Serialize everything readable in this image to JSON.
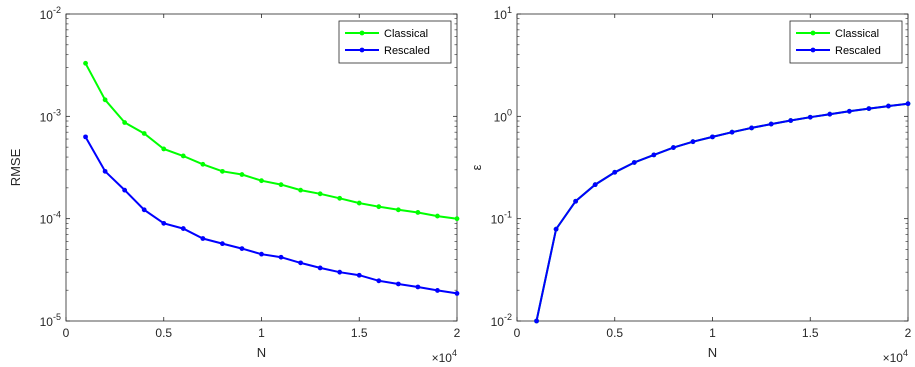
{
  "colors": {
    "classical": "#00ff00",
    "rescaled": "#0000ff",
    "axis": "#262626"
  },
  "chart_data": [
    {
      "type": "line",
      "title": "",
      "xlabel": "N",
      "ylabel": "RMSE",
      "x_multiplier_label": {
        "base": "×10",
        "exponent": "4"
      },
      "xlim": [
        0,
        2
      ],
      "ylim": [
        1e-05,
        0.01
      ],
      "yscale": "log",
      "x_ticks": [
        {
          "value": 0,
          "label": "0"
        },
        {
          "value": 0.5,
          "label": "0.5"
        },
        {
          "value": 1,
          "label": "1"
        },
        {
          "value": 1.5,
          "label": "1.5"
        },
        {
          "value": 2,
          "label": "2"
        }
      ],
      "y_ticks": [
        {
          "value": 1e-05,
          "base": "10",
          "exponent": "-5"
        },
        {
          "value": 0.0001,
          "base": "10",
          "exponent": "-4"
        },
        {
          "value": 0.001,
          "base": "10",
          "exponent": "-3"
        },
        {
          "value": 0.01,
          "base": "10",
          "exponent": "-2"
        }
      ],
      "legend_position": "top-right",
      "x": [
        0.1,
        0.2,
        0.3,
        0.4,
        0.5,
        0.6,
        0.7,
        0.8,
        0.9,
        1.0,
        1.1,
        1.2,
        1.3,
        1.4,
        1.5,
        1.6,
        1.7,
        1.8,
        1.9,
        2.0
      ],
      "series": [
        {
          "name": "Classical",
          "color": "#00ff00",
          "values": [
            0.0033,
            0.00145,
            0.00087,
            0.00068,
            0.00048,
            0.00041,
            0.00034,
            0.00029,
            0.00027,
            0.000235,
            0.000215,
            0.00019,
            0.000175,
            0.000158,
            0.000142,
            0.000131,
            0.000122,
            0.000115,
            0.000106,
            0.0001
          ]
        },
        {
          "name": "Rescaled",
          "color": "#0000ff",
          "values": [
            0.00063,
            0.00029,
            0.00019,
            0.000122,
            9e-05,
            8e-05,
            6.4e-05,
            5.7e-05,
            5.1e-05,
            4.5e-05,
            4.2e-05,
            3.7e-05,
            3.3e-05,
            3e-05,
            2.8e-05,
            2.47e-05,
            2.3e-05,
            2.15e-05,
            1.99e-05,
            1.86e-05
          ]
        }
      ]
    },
    {
      "type": "line",
      "title": "",
      "xlabel": "N",
      "ylabel": "ε",
      "x_multiplier_label": {
        "base": "×10",
        "exponent": "4"
      },
      "xlim": [
        0,
        2
      ],
      "ylim": [
        0.01,
        10
      ],
      "yscale": "log",
      "x_ticks": [
        {
          "value": 0,
          "label": "0"
        },
        {
          "value": 0.5,
          "label": "0.5"
        },
        {
          "value": 1,
          "label": "1"
        },
        {
          "value": 1.5,
          "label": "1.5"
        },
        {
          "value": 2,
          "label": "2"
        }
      ],
      "y_ticks": [
        {
          "value": 0.01,
          "base": "10",
          "exponent": "-2"
        },
        {
          "value": 0.1,
          "base": "10",
          "exponent": "-1"
        },
        {
          "value": 1,
          "base": "10",
          "exponent": "0"
        },
        {
          "value": 10,
          "base": "10",
          "exponent": "1"
        }
      ],
      "legend_position": "top-right",
      "x": [
        0.1,
        0.2,
        0.3,
        0.4,
        0.5,
        0.6,
        0.7,
        0.8,
        0.9,
        1.0,
        1.1,
        1.2,
        1.3,
        1.4,
        1.5,
        1.6,
        1.7,
        1.8,
        1.9,
        2.0
      ],
      "series": [
        {
          "name": "Classical",
          "color": "#00ff00",
          "values": [
            0.01,
            0.079,
            0.148,
            0.215,
            0.284,
            0.354,
            0.42,
            0.495,
            0.565,
            0.63,
            0.7,
            0.77,
            0.84,
            0.91,
            0.98,
            1.05,
            1.12,
            1.19,
            1.26,
            1.33
          ]
        },
        {
          "name": "Rescaled",
          "color": "#0000ff",
          "values": [
            0.01,
            0.079,
            0.148,
            0.215,
            0.284,
            0.354,
            0.42,
            0.495,
            0.565,
            0.63,
            0.7,
            0.77,
            0.84,
            0.91,
            0.98,
            1.05,
            1.12,
            1.19,
            1.26,
            1.33
          ]
        }
      ]
    }
  ]
}
